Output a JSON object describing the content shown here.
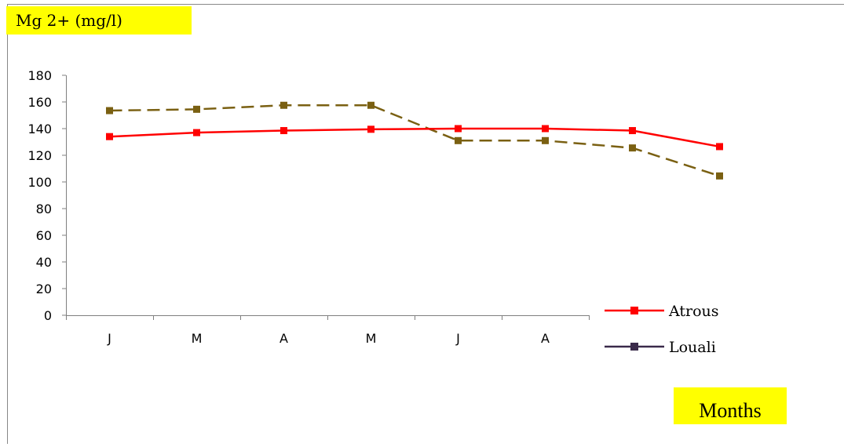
{
  "chart_data": {
    "type": "line",
    "categories": [
      "J",
      "M",
      "A",
      "M",
      "J",
      "A",
      "",
      ""
    ],
    "ylabel": "Mg 2+ (mg/l)",
    "xlabel": "Months",
    "ylim": [
      0,
      180
    ],
    "yticks": [
      0,
      20,
      40,
      60,
      80,
      100,
      120,
      140,
      160,
      180
    ],
    "grid": false,
    "legend_position": "bottom-right",
    "series": [
      {
        "name": "Atrous",
        "color": "#ff0000",
        "line_style": "solid",
        "marker": "square",
        "values": [
          134,
          137,
          138.5,
          139.5,
          140,
          140,
          138.5,
          126.5
        ]
      },
      {
        "name": "Louali",
        "color": "#7a6012",
        "legend_color": "#3a2a4a",
        "line_style": "dashed",
        "marker": "square",
        "values": [
          153.5,
          154.5,
          157.5,
          157.5,
          131,
          131,
          125.5,
          104.5
        ]
      }
    ]
  }
}
